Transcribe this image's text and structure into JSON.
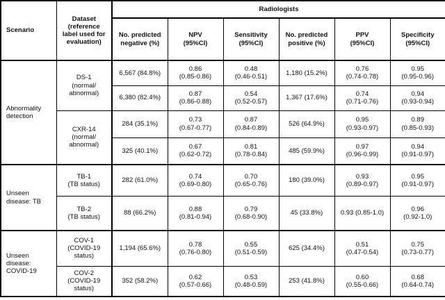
{
  "table": {
    "header": {
      "scenario": "Scenario",
      "dataset": "Dataset\n(reference\nlabel used for\nevaluation)",
      "group": "Radiologists",
      "columns": [
        "No. predicted\nnegative (%)",
        "NPV\n(95%CI)",
        "Sensitivity\n(95%CI)",
        "No. predicted\npositive (%)",
        "PPV\n(95%CI)",
        "Specificity\n(95%CI)"
      ]
    },
    "sections": [
      {
        "scenario": "Abnormality\ndetection",
        "groups": [
          {
            "dataset": "DS-1\n(normal/\nabnormal)",
            "rows": [
              [
                "6,567 (84.8%)",
                "0.86\n(0.85-0.86)",
                "0.48\n(0.46-0.51)",
                "1,180 (15.2%)",
                "0.76\n(0.74-0.78)",
                "0.95\n(0.95-0.96)"
              ],
              [
                "6,380 (82.4%)",
                "0.87\n(0.86-0.88)",
                "0.54\n(0.52-0.57)",
                "1,367 (17.6%)",
                "0.74\n(0.71-0.76)",
                "0.94\n(0.93-0.94)"
              ]
            ]
          },
          {
            "dataset": "CXR-14\n(normal/\nabnormal)",
            "rows": [
              [
                "284 (35.1%)",
                "0.73\n(0.67-0.77)",
                "0.87\n(0.84-0.89)",
                "526 (64.9%)",
                "0.95\n(0.93-0.97)",
                "0.89\n(0.85-0.93)"
              ],
              [
                "325 (40.1%)",
                "0.67\n(0.62-0.72)",
                "0.81\n(0.78-0.84)",
                "485 (59.9%)",
                "0.97\n(0.96-0.99)",
                "0.94\n(0.91-0.97)"
              ]
            ]
          }
        ]
      },
      {
        "scenario": "Unseen\ndisease: TB",
        "groups": [
          {
            "dataset": "TB-1\n(TB status)",
            "rows": [
              [
                "282 (61.0%)",
                "0.74\n(0.69-0.80)",
                "0.70\n(0.65-0.76)",
                "180 (39.0%)",
                "0.93\n(0.89-0.97)",
                "0.95\n(0.91-0.97)"
              ]
            ]
          },
          {
            "dataset": "TB-2\n(TB status)",
            "rows": [
              [
                "88 (66.2%)",
                "0.88\n(0.81-0.94)",
                "0.79\n(0.68-0.90)",
                "45 (33.8%)",
                "0.93 (0.85-1.0)",
                "0.96\n(0.92-1.0)"
              ]
            ]
          }
        ]
      },
      {
        "scenario": "Unseen\ndisease:\nCOVID-19",
        "groups": [
          {
            "dataset": "COV-1\n(COVID-19\nstatus)",
            "rows": [
              [
                "1,194 (65.6%)",
                "0.78\n(0.76-0.80)",
                "0.55\n(0.51-0.59)",
                "625 (34.4%)",
                "0.51\n(0.47-0.54)",
                "0.75\n(0.73-0.77)"
              ]
            ]
          },
          {
            "dataset": "COV-2\n(COVID-19\nstatus)",
            "rows": [
              [
                "352 (58.2%)",
                "0.62\n(0.57-0.66)",
                "0.53\n(0.48-0.59)",
                "253 (41.8%)",
                "0.60\n(0.55-0.66)",
                "0.68\n(0.64-0.74)"
              ]
            ]
          }
        ]
      }
    ]
  }
}
